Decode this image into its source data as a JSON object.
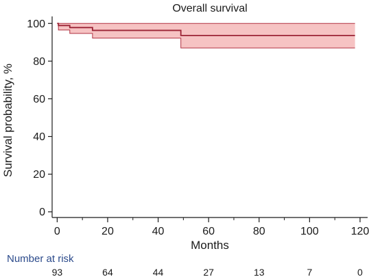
{
  "chart_data": {
    "type": "line",
    "title": "Overall survival",
    "xlabel": "Months",
    "ylabel": "Survival probability, %",
    "xlim": [
      -2,
      123
    ],
    "ylim": [
      -3,
      103
    ],
    "x_ticks": [
      0,
      20,
      40,
      60,
      80,
      100,
      120
    ],
    "y_ticks": [
      0,
      20,
      40,
      60,
      80,
      100
    ],
    "x_minor_ticks": [
      10,
      30,
      50,
      70,
      90,
      110
    ],
    "grid": false,
    "colors": {
      "line": "#9b2335",
      "band": "#f4b8b8",
      "band_edge": "#b03040"
    },
    "series": [
      {
        "step": "post",
        "x": [
          0,
          0.5,
          5,
          14,
          49,
          118
        ],
        "y": [
          100,
          98.9,
          97.8,
          96.3,
          93.6,
          93.6
        ],
        "ci_upper": [
          100,
          100,
          100,
          100,
          100,
          100
        ],
        "ci_lower": [
          100,
          96.5,
          94.7,
          92.2,
          87.0,
          87.0
        ]
      }
    ],
    "risk_table": {
      "title": "Number at risk",
      "times": [
        0,
        20,
        40,
        60,
        80,
        100,
        120
      ],
      "counts": [
        "93",
        "64",
        "44",
        "27",
        "13",
        "7",
        "0"
      ]
    }
  }
}
